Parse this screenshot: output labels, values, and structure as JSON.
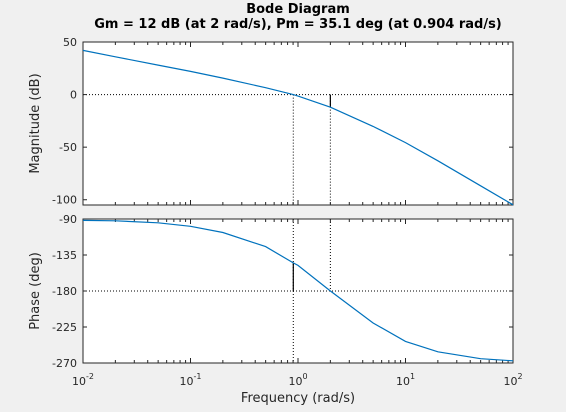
{
  "chart_data": {
    "type": "line",
    "title": "Bode Diagram",
    "subtitle": "Gm = 12 dB (at 2 rad/s),  Pm = 35.1 deg (at 0.904 rad/s)",
    "xlabel": "Frequency  (rad/s)",
    "x_scale": "log",
    "xlim": [
      0.01,
      100
    ],
    "x_ticks": [
      {
        "base": "10",
        "exp": "-2",
        "value": 0.01
      },
      {
        "base": "10",
        "exp": "-1",
        "value": 0.1
      },
      {
        "base": "10",
        "exp": "0",
        "value": 1
      },
      {
        "base": "10",
        "exp": "1",
        "value": 10
      },
      {
        "base": "10",
        "exp": "2",
        "value": 100
      }
    ],
    "gain_margin": {
      "value_db": 12,
      "frequency": 2
    },
    "phase_margin": {
      "value_deg": 35.1,
      "frequency": 0.904
    },
    "line_color": "#0072bd",
    "grid": false,
    "panels": [
      {
        "ylabel": "Magnitude (dB)",
        "ylim": [
          -105,
          50
        ],
        "yticks": [
          "50",
          "0",
          "-50",
          "-100"
        ],
        "ytick_values": [
          50,
          0,
          -50,
          -100
        ],
        "reference_line": 0,
        "x": [
          0.01,
          0.02,
          0.05,
          0.1,
          0.2,
          0.5,
          0.904,
          1,
          2,
          5,
          10,
          20,
          50,
          100
        ],
        "y": [
          42,
          35.9,
          28.0,
          22.0,
          15.7,
          6.5,
          0,
          -1.4,
          -12,
          -30.3,
          -45.7,
          -63.0,
          -86.7,
          -104.8
        ]
      },
      {
        "ylabel": "Phase (deg)",
        "ylim": [
          -270,
          -90
        ],
        "yticks": [
          "-90",
          "-135",
          "-180",
          "-225",
          "-270"
        ],
        "ytick_values": [
          -90,
          -135,
          -180,
          -225,
          -270
        ],
        "reference_line": -180,
        "x": [
          0.01,
          0.02,
          0.05,
          0.1,
          0.2,
          0.5,
          0.904,
          1,
          2,
          5,
          10,
          20,
          50,
          100
        ],
        "y": [
          -91.7,
          -92.3,
          -94.7,
          -99.1,
          -106.9,
          -124.5,
          -144.9,
          -148.0,
          -180.0,
          -220.0,
          -243.0,
          -256.0,
          -264.6,
          -267.3
        ]
      }
    ]
  }
}
